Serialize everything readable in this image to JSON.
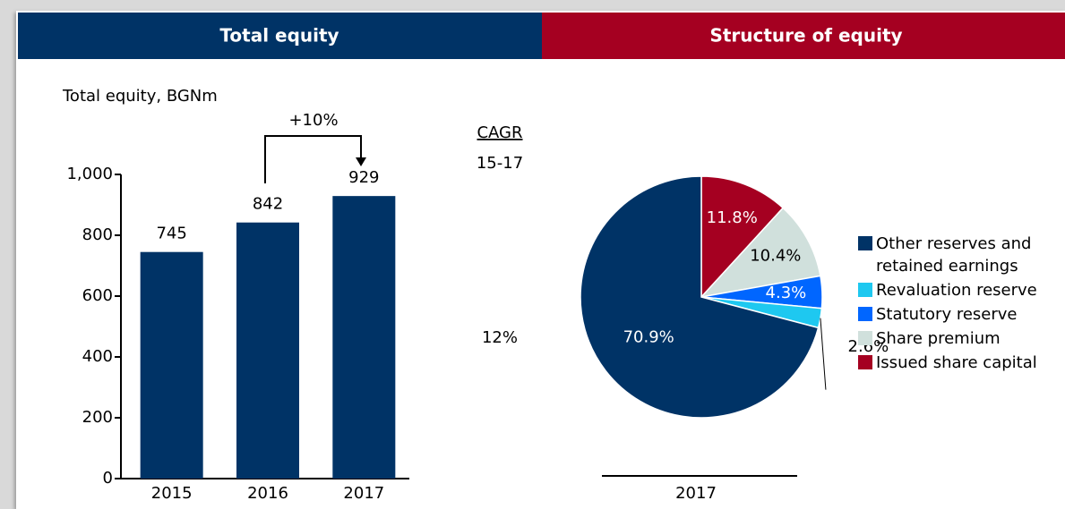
{
  "header": {
    "left": "Total equity",
    "right": "Structure of equity"
  },
  "chart_data": [
    {
      "type": "bar",
      "ylabel": "Total equity, BGNm",
      "categories": [
        "2015",
        "2016",
        "2017"
      ],
      "values": [
        745,
        842,
        929
      ],
      "color": "#003366",
      "ylim": [
        0,
        1000
      ],
      "yticks": [
        0,
        200,
        400,
        600,
        800,
        {
          "value": 1000,
          "label": "1,000"
        }
      ],
      "annotation": "+10%",
      "cagr": {
        "title": "CAGR",
        "period": "15-17",
        "value": "12%"
      }
    },
    {
      "type": "pie",
      "categories": [
        "2017"
      ],
      "series": [
        {
          "name": "Issued share capital",
          "color": "#a50021",
          "values": [
            11.8
          ],
          "value_labels": [
            "11.8%"
          ]
        },
        {
          "name": "Share premium",
          "color": "#d0e0dc",
          "values": [
            10.4
          ],
          "value_labels": [
            "10.4%"
          ]
        },
        {
          "name": "Statutory reserve",
          "color": "#0066ff",
          "values": [
            4.3
          ],
          "value_labels": [
            "4.3%"
          ]
        },
        {
          "name": "Revaluation reserve",
          "color": "#1ec8f0",
          "values": [
            2.6
          ],
          "value_labels": [
            "2.6%"
          ]
        },
        {
          "name": "Other reserves and retained earnings",
          "color": "#003366",
          "values": [
            70.9
          ],
          "value_labels": [
            "70.9%"
          ]
        }
      ]
    }
  ]
}
